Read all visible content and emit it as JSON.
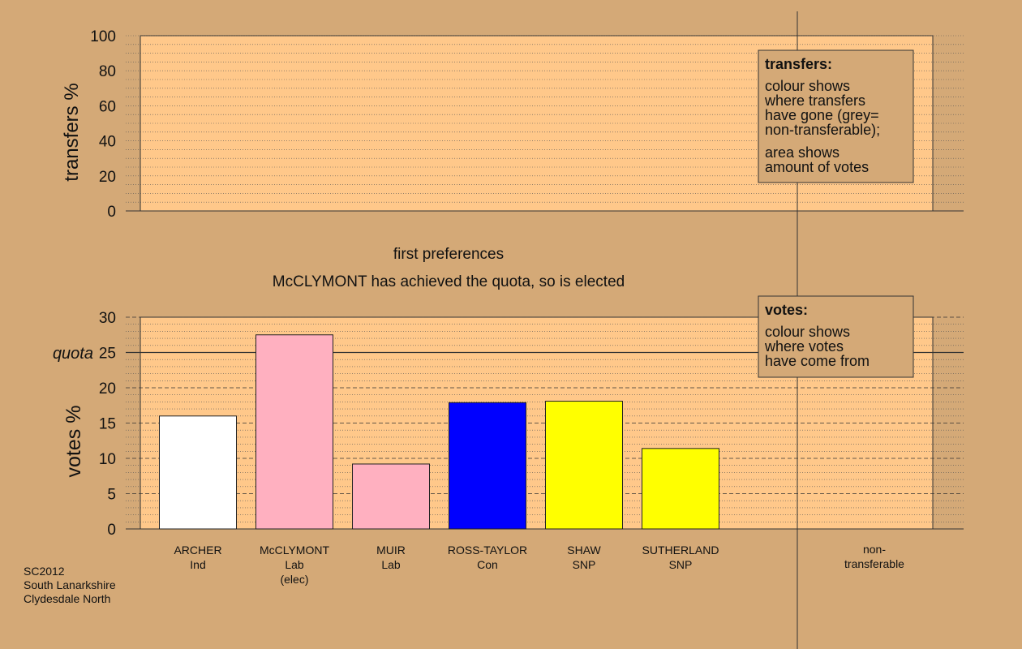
{
  "transfers_panel": {
    "ylabel": "transfers %",
    "ylim": [
      0,
      100
    ],
    "ticks": [
      "0",
      "20",
      "40",
      "60",
      "80",
      "100"
    ]
  },
  "captions": {
    "stage": "first preferences",
    "status": "McCLYMONT has achieved the quota, so is elected"
  },
  "legend_transfers": {
    "title": "transfers:",
    "lines_a": [
      "colour shows",
      "where transfers",
      "have gone (grey=",
      "non-transferable);"
    ],
    "lines_b": [
      "area shows",
      "amount of votes"
    ]
  },
  "legend_votes": {
    "title": "votes:",
    "lines": [
      "colour shows",
      "where votes",
      "have come from"
    ]
  },
  "footer": [
    "SC2012",
    "South Lanarkshire",
    "Clydesdale North"
  ],
  "colors": {
    "background": "#d4a977",
    "plot_bg": "#ffc88a",
    "ind": "#ffffff",
    "lab": "#ffb0c0",
    "con": "#0000ff",
    "snp": "#ffff00"
  },
  "chart_data": {
    "type": "bar",
    "ylabel": "votes %",
    "ylim": [
      0,
      30
    ],
    "yticks": [
      "0",
      "5",
      "10",
      "15",
      "20",
      "25",
      "30"
    ],
    "quota": 25,
    "quota_label": "quota",
    "candidates": [
      {
        "name": "ARCHER",
        "party": "Ind",
        "note": "",
        "value": 16.0,
        "color": "#ffffff"
      },
      {
        "name": "McCLYMONT",
        "party": "Lab",
        "note": "(elec)",
        "value": 27.5,
        "color": "#ffb0c0"
      },
      {
        "name": "MUIR",
        "party": "Lab",
        "note": "",
        "value": 9.2,
        "color": "#ffb0c0"
      },
      {
        "name": "ROSS-TAYLOR",
        "party": "Con",
        "note": "",
        "value": 17.9,
        "color": "#0000ff"
      },
      {
        "name": "SHAW",
        "party": "SNP",
        "note": "",
        "value": 18.1,
        "color": "#ffff00"
      },
      {
        "name": "SUTHERLAND",
        "party": "SNP",
        "note": "",
        "value": 11.4,
        "color": "#ffff00"
      }
    ],
    "nontransferable_label": [
      "non-",
      "transferable"
    ]
  }
}
